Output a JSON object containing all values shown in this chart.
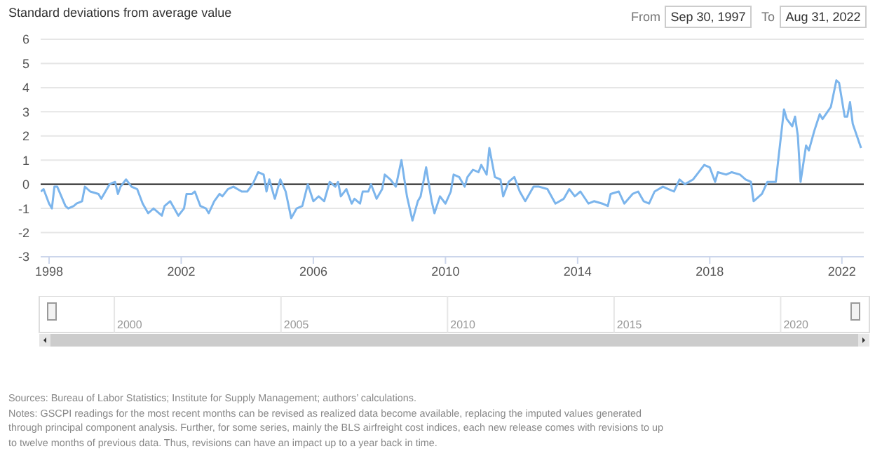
{
  "chart_data": {
    "type": "line",
    "ylabel": "Standard deviations from average value",
    "x": [
      "1997-10",
      "1997-11",
      "1998-01",
      "1998-02",
      "1998-03",
      "1998-04",
      "1998-07",
      "1998-08",
      "1998-10",
      "1998-11",
      "1999-01",
      "1999-02",
      "1999-04",
      "1999-07",
      "1999-08",
      "1999-11",
      "2000-01",
      "2000-02",
      "2000-03",
      "2000-05",
      "2000-07",
      "2000-09",
      "2000-11",
      "2001-01",
      "2001-03",
      "2001-06",
      "2001-07",
      "2001-09",
      "2001-12",
      "2002-02",
      "2002-03",
      "2002-05",
      "2002-06",
      "2002-08",
      "2002-10",
      "2002-11",
      "2003-01",
      "2003-03",
      "2003-04",
      "2003-06",
      "2003-08",
      "2003-11",
      "2004-01",
      "2004-03",
      "2004-05",
      "2004-07",
      "2004-08",
      "2004-09",
      "2004-11",
      "2005-01",
      "2005-03",
      "2005-05",
      "2005-07",
      "2005-09",
      "2005-11",
      "2006-01",
      "2006-03",
      "2006-05",
      "2006-07",
      "2006-09",
      "2006-10",
      "2006-11",
      "2007-01",
      "2007-03",
      "2007-04",
      "2007-06",
      "2007-07",
      "2007-09",
      "2007-10",
      "2007-12",
      "2008-02",
      "2008-03",
      "2008-05",
      "2008-07",
      "2008-09",
      "2008-11",
      "2009-01",
      "2009-03",
      "2009-04",
      "2009-06",
      "2009-08",
      "2009-09",
      "2009-11",
      "2010-01",
      "2010-03",
      "2010-04",
      "2010-06",
      "2010-08",
      "2010-09",
      "2010-11",
      "2011-01",
      "2011-02",
      "2011-04",
      "2011-05",
      "2011-07",
      "2011-09",
      "2011-10",
      "2011-12",
      "2012-02",
      "2012-04",
      "2012-06",
      "2012-09",
      "2012-11",
      "2013-02",
      "2013-05",
      "2013-08",
      "2013-10",
      "2013-12",
      "2014-02",
      "2014-05",
      "2014-07",
      "2014-10",
      "2014-12",
      "2015-01",
      "2015-04",
      "2015-06",
      "2015-09",
      "2015-11",
      "2016-01",
      "2016-03",
      "2016-05",
      "2016-08",
      "2016-10",
      "2016-12",
      "2017-02",
      "2017-04",
      "2017-07",
      "2017-09",
      "2017-11",
      "2018-01",
      "2018-03",
      "2018-04",
      "2018-07",
      "2018-09",
      "2018-12",
      "2019-02",
      "2019-04",
      "2019-05",
      "2019-08",
      "2019-10",
      "2019-12",
      "2020-01",
      "2020-04",
      "2020-05",
      "2020-07",
      "2020-08",
      "2020-09",
      "2020-10",
      "2020-12",
      "2021-01",
      "2021-03",
      "2021-05",
      "2021-06",
      "2021-09",
      "2021-11",
      "2021-12",
      "2022-02",
      "2022-03",
      "2022-04",
      "2022-05",
      "2022-08"
    ],
    "series": [
      {
        "color": "#7cb5ec",
        "values": [
          -0.3,
          -0.2,
          -0.8,
          -1.0,
          -0.1,
          -0.1,
          -0.9,
          -1.0,
          -0.9,
          -0.8,
          -0.7,
          -0.1,
          -0.3,
          -0.4,
          -0.6,
          0.0,
          0.1,
          -0.4,
          -0.1,
          0.2,
          -0.1,
          -0.2,
          -0.8,
          -1.2,
          -1.0,
          -1.3,
          -0.9,
          -0.7,
          -1.3,
          -1.0,
          -0.4,
          -0.4,
          -0.3,
          -0.9,
          -1.0,
          -1.2,
          -0.7,
          -0.4,
          -0.5,
          -0.2,
          -0.1,
          -0.3,
          -0.3,
          0.0,
          0.5,
          0.4,
          -0.3,
          0.2,
          -0.6,
          0.2,
          -0.3,
          -1.4,
          -1.0,
          -0.9,
          0.0,
          -0.7,
          -0.5,
          -0.7,
          0.1,
          -0.1,
          0.1,
          -0.5,
          -0.2,
          -0.8,
          -0.6,
          -0.8,
          -0.3,
          -0.3,
          0.0,
          -0.6,
          -0.2,
          0.4,
          0.2,
          -0.1,
          1.0,
          -0.5,
          -1.5,
          -0.7,
          -0.5,
          0.7,
          -0.7,
          -1.2,
          -0.5,
          -0.8,
          -0.3,
          0.4,
          0.3,
          -0.1,
          0.3,
          0.6,
          0.5,
          0.8,
          0.4,
          1.5,
          0.3,
          0.2,
          -0.5,
          0.1,
          0.3,
          -0.3,
          -0.7,
          -0.1,
          -0.1,
          -0.2,
          -0.8,
          -0.6,
          -0.2,
          -0.5,
          -0.3,
          -0.8,
          -0.7,
          -0.8,
          -0.9,
          -0.4,
          -0.3,
          -0.8,
          -0.4,
          -0.3,
          -0.7,
          -0.8,
          -0.3,
          -0.1,
          -0.2,
          -0.3,
          0.2,
          0.0,
          0.2,
          0.5,
          0.8,
          0.7,
          0.1,
          0.5,
          0.4,
          0.5,
          0.4,
          0.2,
          0.1,
          -0.7,
          -0.4,
          0.1,
          0.1,
          0.1,
          3.1,
          2.7,
          2.4,
          2.8,
          2.0,
          0.1,
          1.6,
          1.4,
          2.2,
          2.9,
          2.7,
          3.2,
          4.3,
          4.2,
          2.8,
          2.8,
          3.4,
          2.5,
          1.5
        ]
      }
    ],
    "xlim": [
      "1997-09-30",
      "2022-08-31"
    ],
    "xticks": [
      {
        "value": "1998",
        "label": "1998"
      },
      {
        "value": "2002",
        "label": "2002"
      },
      {
        "value": "2006",
        "label": "2006"
      },
      {
        "value": "2010",
        "label": "2010"
      },
      {
        "value": "2014",
        "label": "2014"
      },
      {
        "value": "2018",
        "label": "2018"
      },
      {
        "value": "2022",
        "label": "2022"
      }
    ],
    "ylim": [
      -3,
      6
    ],
    "yticks": [
      -3,
      -2,
      -1,
      0,
      1,
      2,
      3,
      4,
      5,
      6
    ],
    "grid": "y",
    "marker": "none",
    "line_style": "solid",
    "ref_lines": [
      {
        "axis": "y",
        "value": 0,
        "color": "#333333"
      }
    ],
    "annotations": [
      "From",
      "Sep 30, 1997",
      "To",
      "Aug 31, 2022",
      "2000",
      "2005",
      "2010",
      "2015",
      "2020",
      "Sources: Bureau of Labor Statistics; Institute for Supply Management; authors’ calculations.",
      "Notes: GSCPI readings for the most recent months can be revised as realized data become available, replacing the imputed values generated through principal component analysis. Further, for some series, mainly the BLS airfreight cost indices, each new release comes with revisions to up to twelve months of previous data. Thus, revisions can have an impact up to a year back in time."
    ]
  }
}
